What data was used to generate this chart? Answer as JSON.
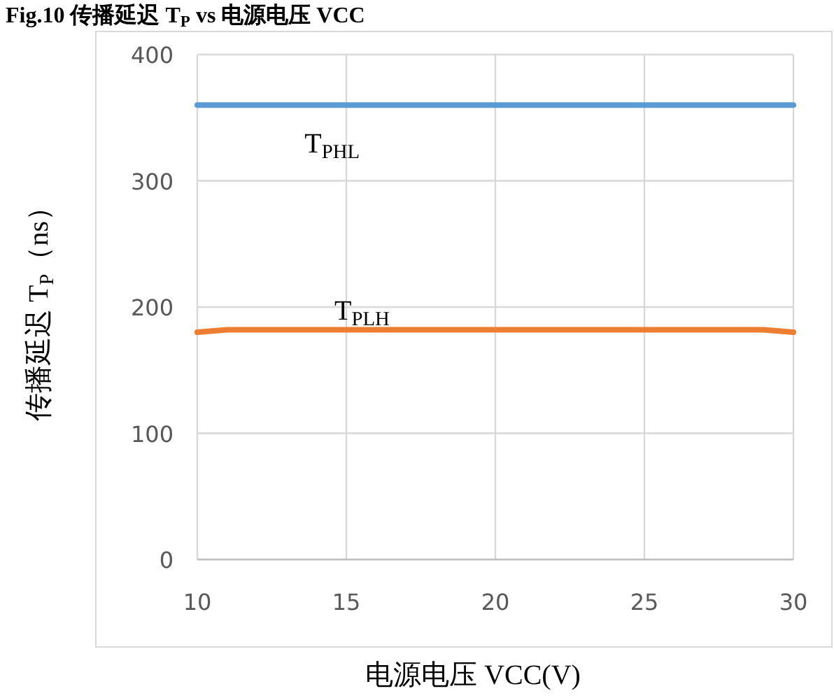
{
  "chart_data": {
    "type": "line",
    "title": "Fig.10 传播延迟 T$_{P}$ vs 电源电压 VCC",
    "xlabel": "电源电压 VCC(V)",
    "ylabel": "传播延迟 T$_{P}$（ns）",
    "xlim": [
      10,
      30
    ],
    "xticks": [
      10,
      15,
      20,
      25,
      30
    ],
    "ylim": [
      0,
      400
    ],
    "yticks": [
      0,
      100,
      200,
      300,
      400
    ],
    "grid": true,
    "marker": "none",
    "line_style": "solid",
    "series": [
      {
        "name": "T$_{PHL}$",
        "color": "#5b9bd5",
        "x": [
          10,
          15,
          20,
          25,
          30
        ],
        "values": [
          360,
          360,
          360,
          360,
          360
        ]
      },
      {
        "name": "T$_{PLH}$",
        "color": "#ed7d31",
        "x": [
          10,
          11,
          15,
          20,
          25,
          29,
          30
        ],
        "values": [
          180,
          182,
          182,
          182,
          182,
          182,
          180
        ]
      }
    ]
  }
}
